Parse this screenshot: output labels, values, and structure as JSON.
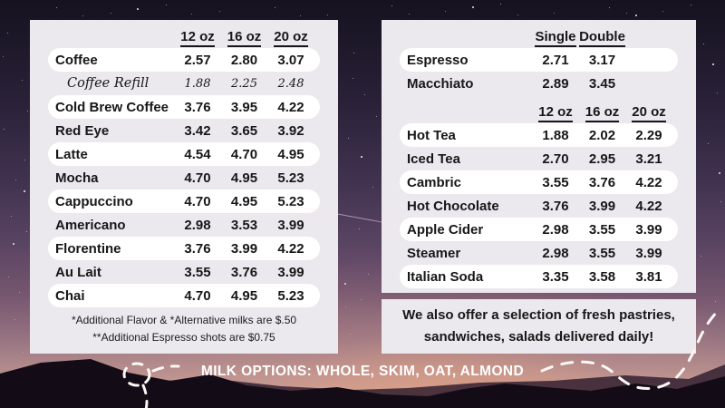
{
  "colors": {
    "panel_bg": "#ebe8ee",
    "pill_bg": "#ffffff",
    "text": "#171717",
    "footer_text": "#ffffff",
    "sky_top": "#16121f",
    "sky_bottom": "#c69d94",
    "mountain": "#130c16"
  },
  "left_panel": {
    "sections": [
      {
        "columns": [
          "12 oz",
          "16 oz",
          "20 oz"
        ],
        "rows": [
          {
            "name": "Coffee",
            "prices": [
              "2.57",
              "2.80",
              "3.07"
            ],
            "pill": true
          },
          {
            "name": "Coffee Refill",
            "prices": [
              "1.88",
              "2.25",
              "2.48"
            ],
            "pill": false,
            "variant": "refill"
          },
          {
            "name": "Cold Brew Coffee",
            "prices": [
              "3.76",
              "3.95",
              "4.22"
            ],
            "pill": true
          },
          {
            "name": "Red Eye",
            "prices": [
              "3.42",
              "3.65",
              "3.92"
            ],
            "pill": false
          },
          {
            "name": "Latte",
            "prices": [
              "4.54",
              "4.70",
              "4.95"
            ],
            "pill": true
          },
          {
            "name": "Mocha",
            "prices": [
              "4.70",
              "4.95",
              "5.23"
            ],
            "pill": false
          },
          {
            "name": "Cappuccino",
            "prices": [
              "4.70",
              "4.95",
              "5.23"
            ],
            "pill": true
          },
          {
            "name": "Americano",
            "prices": [
              "2.98",
              "3.53",
              "3.99"
            ],
            "pill": false
          },
          {
            "name": "Florentine",
            "prices": [
              "3.76",
              "3.99",
              "4.22"
            ],
            "pill": true
          },
          {
            "name": "Au Lait",
            "prices": [
              "3.55",
              "3.76",
              "3.99"
            ],
            "pill": false
          },
          {
            "name": "Chai",
            "prices": [
              "4.70",
              "4.95",
              "5.23"
            ],
            "pill": true
          }
        ]
      }
    ],
    "footnotes": [
      "*Additional Flavor & *Alternative milks are $.50",
      "**Additional Espresso shots are $0.75"
    ]
  },
  "right_panel": {
    "sections": [
      {
        "columns": [
          "Single",
          "Double"
        ],
        "rows": [
          {
            "name": "Espresso",
            "prices": [
              "2.71",
              "3.17"
            ],
            "pill": true
          },
          {
            "name": "Macchiato",
            "prices": [
              "2.89",
              "3.45"
            ],
            "pill": false
          }
        ]
      },
      {
        "columns": [
          "12 oz",
          "16 oz",
          "20 oz"
        ],
        "rows": [
          {
            "name": "Hot Tea",
            "prices": [
              "1.88",
              "2.02",
              "2.29"
            ],
            "pill": true
          },
          {
            "name": "Iced Tea",
            "prices": [
              "2.70",
              "2.95",
              "3.21"
            ],
            "pill": false
          },
          {
            "name": "Cambric",
            "prices": [
              "3.55",
              "3.76",
              "4.22"
            ],
            "pill": true
          },
          {
            "name": "Hot Chocolate",
            "prices": [
              "3.76",
              "3.99",
              "4.22"
            ],
            "pill": false
          },
          {
            "name": "Apple Cider",
            "prices": [
              "2.98",
              "3.55",
              "3.99"
            ],
            "pill": true
          },
          {
            "name": "Steamer",
            "prices": [
              "2.98",
              "3.55",
              "3.99"
            ],
            "pill": false
          },
          {
            "name": "Italian Soda",
            "prices": [
              "3.35",
              "3.58",
              "3.81"
            ],
            "pill": true
          }
        ]
      }
    ]
  },
  "note_panel": {
    "line1": "We also offer a selection of fresh pastries,",
    "line2": "sandwiches, salads delivered daily!"
  },
  "footer": {
    "milk_options": "MILK OPTIONS: WHOLE, SKIM, OAT, ALMOND"
  }
}
